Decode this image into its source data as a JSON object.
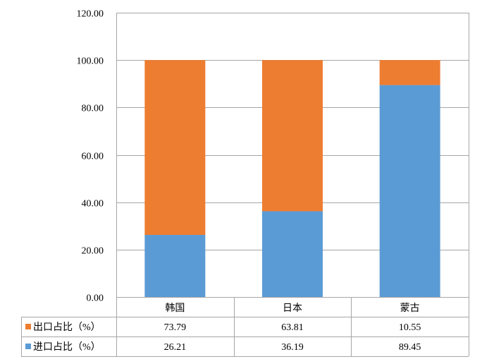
{
  "chart_data": {
    "type": "bar",
    "stacked": true,
    "categories": [
      "韩国",
      "日本",
      "蒙古"
    ],
    "series": [
      {
        "name": "进口占比（%）",
        "color": "#5B9BD5",
        "values": [
          "26.21",
          "36.19",
          "89.45"
        ]
      },
      {
        "name": "出口占比（%）",
        "color": "#ED7D31",
        "values": [
          "73.79",
          "63.81",
          "10.55"
        ]
      }
    ],
    "table_rows": [
      {
        "series_index": 1
      },
      {
        "series_index": 0
      }
    ],
    "ylim": [
      0,
      120
    ],
    "yticks": [
      "0.00",
      "20.00",
      "40.00",
      "60.00",
      "80.00",
      "100.00",
      "120.00"
    ],
    "grid": true,
    "data_table": true
  }
}
